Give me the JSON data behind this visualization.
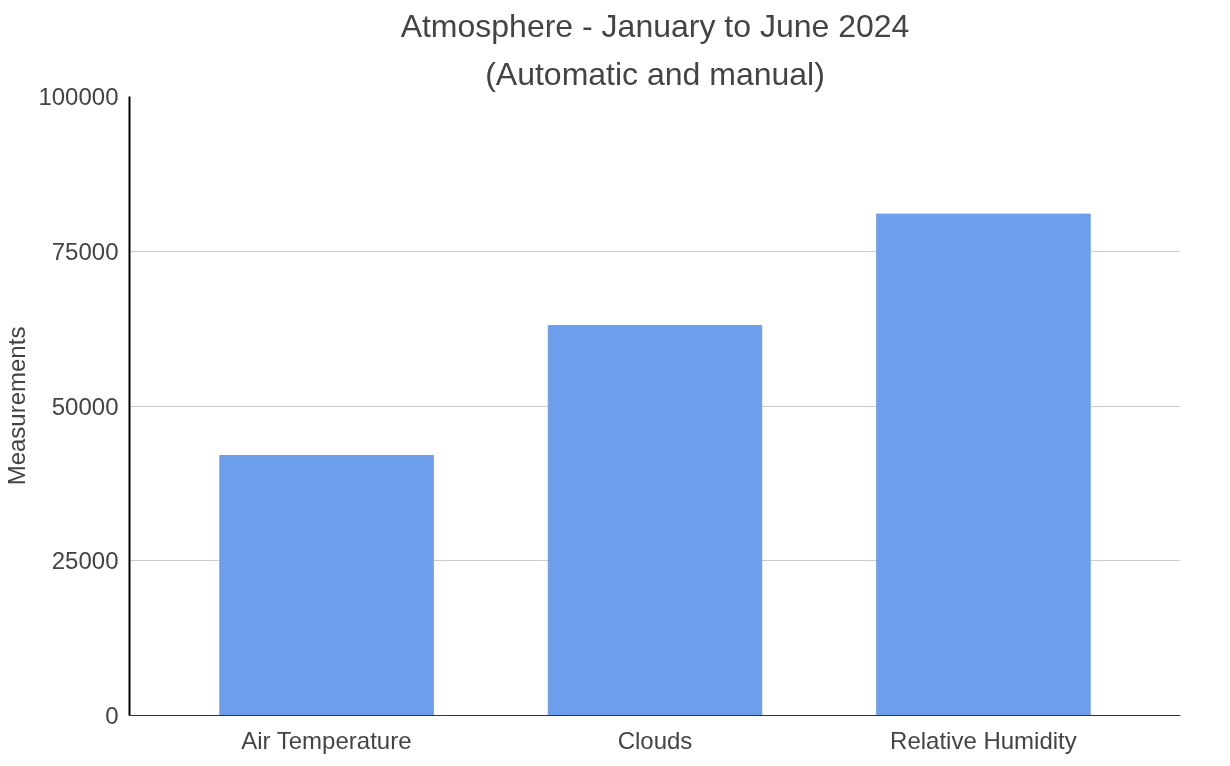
{
  "chart_data": {
    "type": "bar",
    "title": "Atmosphere - January to June 2024",
    "subtitle": "(Automatic and manual)",
    "ylabel": "Measurements",
    "categories": [
      "Air Temperature",
      "Clouds",
      "Relative Humidity"
    ],
    "values": [
      42000,
      63000,
      81000
    ],
    "color": "#6d9eeb",
    "ylim": [
      0,
      100000
    ],
    "yticks": [
      0,
      25000,
      50000,
      75000,
      100000
    ],
    "grid": "y"
  }
}
